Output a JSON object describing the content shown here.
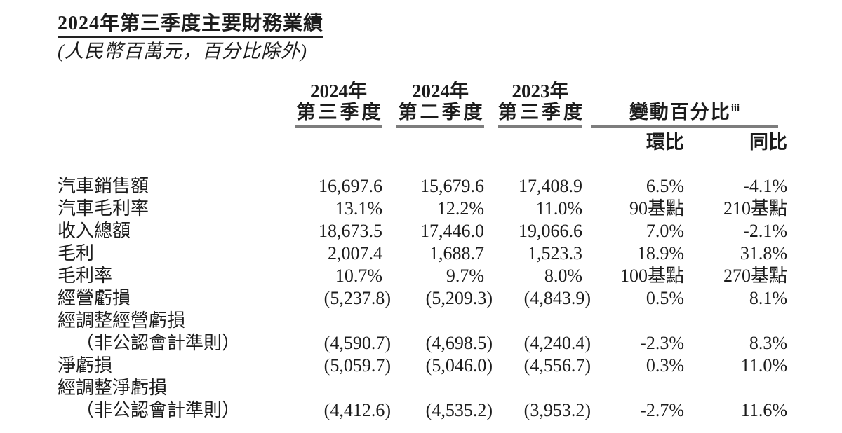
{
  "page": {
    "title": "2024年第三季度主要財務業績",
    "subtitle": "(人民幣百萬元，百分比除外)",
    "text_color": "#1c1c1c",
    "rule_color": "#7d7d7d"
  },
  "table": {
    "col_headers": [
      {
        "line1": "2024年",
        "line2": "第三季度"
      },
      {
        "line1": "2024年",
        "line2": "第二季度"
      },
      {
        "line1": "2023年",
        "line2": "第三季度"
      }
    ],
    "change_group": {
      "label": "變動百分比",
      "superscript": "iii",
      "sub_headers": [
        "環比",
        "同比"
      ]
    },
    "rows": [
      {
        "label": "汽車銷售額",
        "values": [
          "16,697.6",
          "15,679.6",
          "17,408.9",
          "6.5%",
          "-4.1%"
        ]
      },
      {
        "label": "汽車毛利率",
        "values": [
          "13.1%",
          "12.2%",
          "11.0%",
          "90基點",
          "210基點"
        ]
      },
      {
        "label": "收入總額",
        "values": [
          "18,673.5",
          "17,446.0",
          "19,066.6",
          "7.0%",
          "-2.1%"
        ]
      },
      {
        "label": "毛利",
        "values": [
          "2,007.4",
          "1,688.7",
          "1,523.3",
          "18.9%",
          "31.8%"
        ]
      },
      {
        "label": "毛利率",
        "values": [
          "10.7%",
          "9.7%",
          "8.0%",
          "100基點",
          "270基點"
        ]
      },
      {
        "label": "經營虧損",
        "values": [
          "(5,237.8)",
          "(5,209.3)",
          "(4,843.9)",
          "0.5%",
          "8.1%"
        ]
      },
      {
        "label": "經調整經營虧損",
        "label2": "（非公認會計準則）",
        "values": [
          "(4,590.7)",
          "(4,698.5)",
          "(4,240.4)",
          "-2.3%",
          "8.3%"
        ]
      },
      {
        "label": "淨虧損",
        "values": [
          "(5,059.7)",
          "(5,046.0)",
          "(4,556.7)",
          "0.3%",
          "11.0%"
        ]
      },
      {
        "label": "經調整淨虧損",
        "label2": "（非公認會計準則）",
        "values": [
          "(4,412.6)",
          "(4,535.2)",
          "(3,953.2)",
          "-2.7%",
          "11.6%"
        ]
      }
    ]
  }
}
